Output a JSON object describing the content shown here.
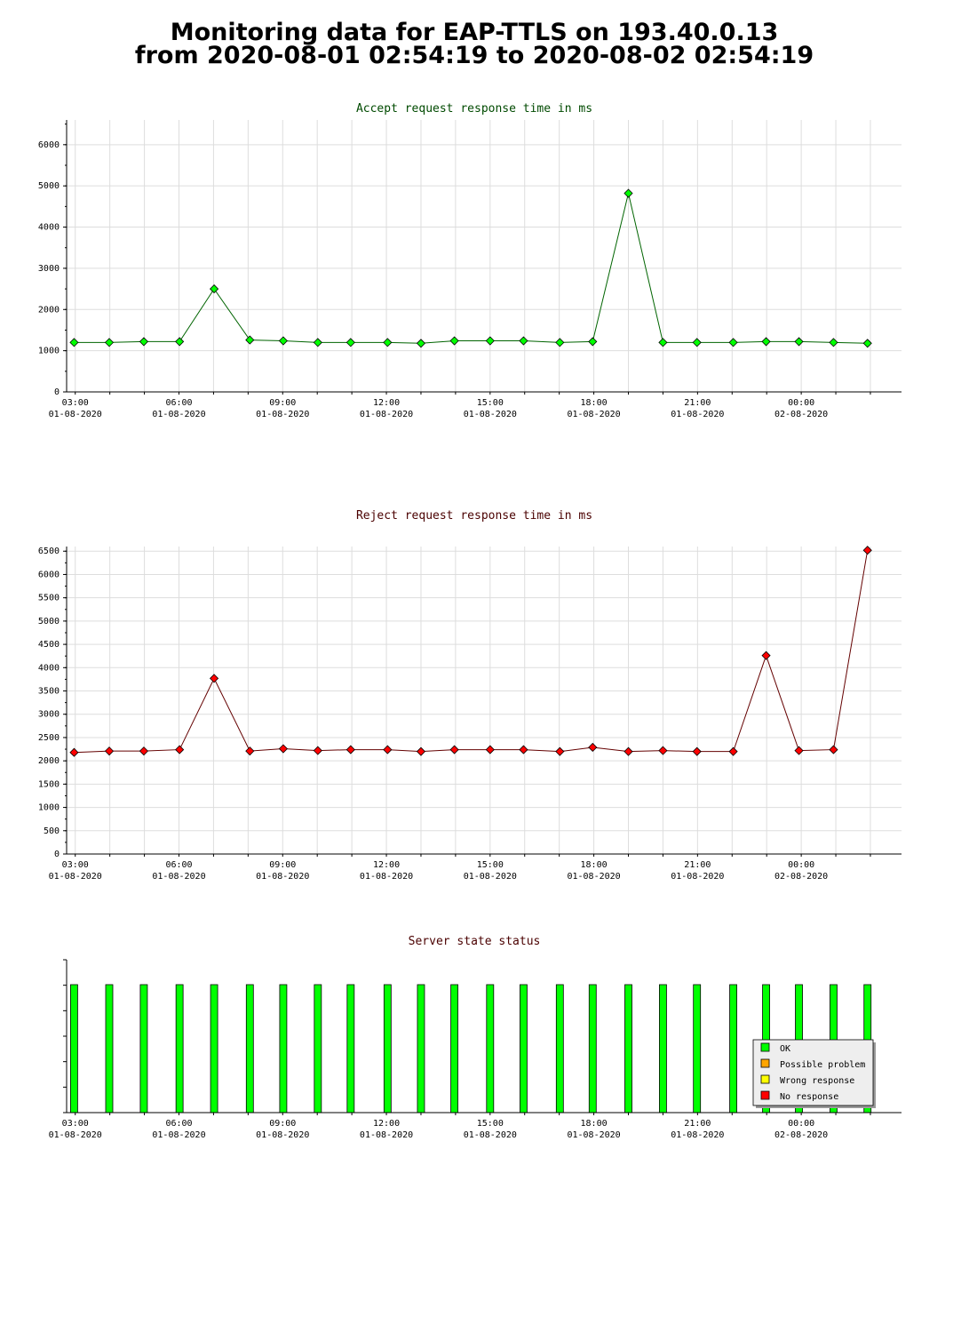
{
  "page_title": {
    "line1": "Monitoring data for EAP-TTLS on 193.40.0.13",
    "line2": "from 2020-08-01 02:54:19 to 2020-08-02 02:54:19"
  },
  "colors": {
    "accept": "#00ff00",
    "accept_line": "#006400",
    "reject": "#ff0000",
    "reject_line": "#640000",
    "grid": "#dddddd",
    "ok": "#00ff00",
    "possible_problem": "#ffa500",
    "wrong_response": "#ffff00",
    "no_response": "#ff0000"
  },
  "x_ticks": [
    {
      "time": "03:00",
      "date": "01-08-2020"
    },
    {
      "time": "06:00",
      "date": "01-08-2020"
    },
    {
      "time": "09:00",
      "date": "01-08-2020"
    },
    {
      "time": "12:00",
      "date": "01-08-2020"
    },
    {
      "time": "15:00",
      "date": "01-08-2020"
    },
    {
      "time": "18:00",
      "date": "01-08-2020"
    },
    {
      "time": "21:00",
      "date": "01-08-2020"
    },
    {
      "time": "00:00",
      "date": "02-08-2020"
    }
  ],
  "chart_data": [
    {
      "type": "line",
      "title": "Accept request response time in ms",
      "xlabel": "",
      "ylabel": "",
      "x_range": [
        "2020-08-01 02:45",
        "2020-08-02 02:54"
      ],
      "ylim": [
        0,
        6600
      ],
      "yticks": [
        0,
        1000,
        2000,
        3000,
        4000,
        5000,
        6000
      ],
      "grid": true,
      "series": [
        {
          "x": [
            "2020-08-01 02:58",
            "2020-08-01 03:59",
            "2020-08-01 04:59",
            "2020-08-01 06:01",
            "2020-08-01 07:01",
            "2020-08-01 08:03",
            "2020-08-01 09:01",
            "2020-08-01 10:01",
            "2020-08-01 10:58",
            "2020-08-01 12:02",
            "2020-08-01 13:00",
            "2020-08-01 13:58",
            "2020-08-01 15:00",
            "2020-08-01 15:58",
            "2020-08-01 17:01",
            "2020-08-01 17:58",
            "2020-08-01 19:00",
            "2020-08-01 20:00",
            "2020-08-01 20:59",
            "2020-08-01 22:02",
            "2020-08-01 22:59",
            "2020-08-01 23:56",
            "2020-08-02 00:56",
            "2020-08-02 01:55"
          ],
          "values": [
            1200,
            1200,
            1220,
            1220,
            2500,
            1260,
            1240,
            1200,
            1200,
            1200,
            1180,
            1240,
            1240,
            1240,
            1200,
            1220,
            4820,
            1200,
            1200,
            1200,
            1220,
            1220,
            1200,
            1180
          ]
        }
      ]
    },
    {
      "type": "line",
      "title": "Reject request response time in ms",
      "xlabel": "",
      "ylabel": "",
      "x_range": [
        "2020-08-01 02:45",
        "2020-08-02 02:54"
      ],
      "ylim": [
        0,
        6600
      ],
      "yticks": [
        0,
        500,
        1000,
        1500,
        2000,
        2500,
        3000,
        3500,
        4000,
        4500,
        5000,
        5500,
        6000,
        6500
      ],
      "grid": true,
      "series": [
        {
          "x": [
            "2020-08-01 02:58",
            "2020-08-01 03:59",
            "2020-08-01 04:59",
            "2020-08-01 06:01",
            "2020-08-01 07:01",
            "2020-08-01 08:03",
            "2020-08-01 09:01",
            "2020-08-01 10:01",
            "2020-08-01 10:58",
            "2020-08-01 12:02",
            "2020-08-01 13:00",
            "2020-08-01 13:58",
            "2020-08-01 15:00",
            "2020-08-01 15:58",
            "2020-08-01 17:01",
            "2020-08-01 17:58",
            "2020-08-01 19:00",
            "2020-08-01 20:00",
            "2020-08-01 20:59",
            "2020-08-01 22:02",
            "2020-08-01 22:59",
            "2020-08-01 23:56",
            "2020-08-02 00:56",
            "2020-08-02 01:55"
          ],
          "values": [
            2180,
            2210,
            2210,
            2240,
            3770,
            2210,
            2260,
            2220,
            2240,
            2240,
            2200,
            2240,
            2240,
            2240,
            2200,
            2290,
            2200,
            2220,
            2200,
            2200,
            4260,
            2220,
            2240,
            6520
          ]
        }
      ]
    },
    {
      "type": "bar",
      "title": "Server state status",
      "xlabel": "",
      "ylabel": "",
      "x_range": [
        "2020-08-01 02:45",
        "2020-08-02 02:54"
      ],
      "legend_position": "bottom-right",
      "legend": [
        "OK",
        "Possible problem",
        "Wrong response",
        "No response"
      ],
      "x": [
        "2020-08-01 02:58",
        "2020-08-01 03:59",
        "2020-08-01 04:59",
        "2020-08-01 06:01",
        "2020-08-01 07:01",
        "2020-08-01 08:03",
        "2020-08-01 09:01",
        "2020-08-01 10:01",
        "2020-08-01 10:58",
        "2020-08-01 12:02",
        "2020-08-01 13:00",
        "2020-08-01 13:58",
        "2020-08-01 15:00",
        "2020-08-01 15:58",
        "2020-08-01 17:01",
        "2020-08-01 17:58",
        "2020-08-01 19:00",
        "2020-08-01 20:00",
        "2020-08-01 20:59",
        "2020-08-01 22:02",
        "2020-08-01 22:59",
        "2020-08-01 23:56",
        "2020-08-02 00:56",
        "2020-08-02 01:55"
      ],
      "status": [
        "OK",
        "OK",
        "OK",
        "OK",
        "OK",
        "OK",
        "OK",
        "OK",
        "OK",
        "OK",
        "OK",
        "OK",
        "OK",
        "OK",
        "OK",
        "OK",
        "OK",
        "OK",
        "OK",
        "OK",
        "OK",
        "OK",
        "OK",
        "OK"
      ]
    }
  ]
}
